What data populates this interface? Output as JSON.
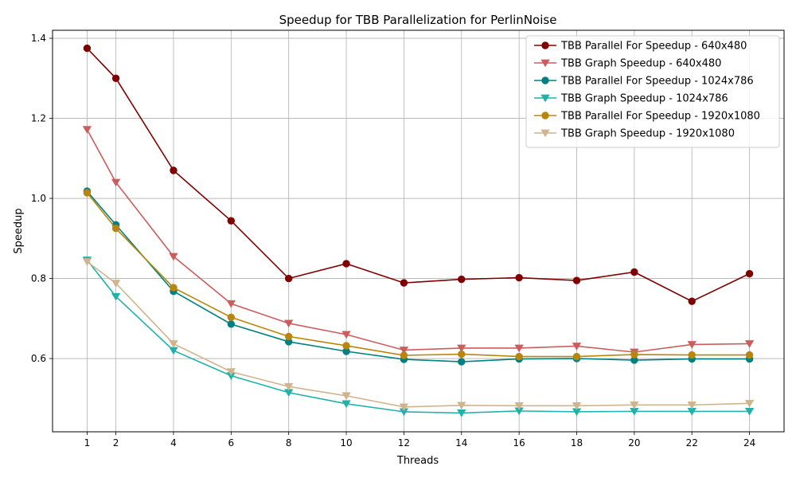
{
  "chart_data": {
    "type": "line",
    "title": "Speedup for TBB Parallelization for PerlinNoise",
    "xlabel": "Threads",
    "ylabel": "Speedup",
    "x": [
      1,
      2,
      4,
      6,
      8,
      10,
      12,
      14,
      16,
      18,
      20,
      22,
      24
    ],
    "xticks": [
      "1",
      "2",
      "4",
      "6",
      "8",
      "10",
      "12",
      "14",
      "16",
      "18",
      "20",
      "22",
      "24"
    ],
    "yticks": [
      "0.6",
      "0.8",
      "1.0",
      "1.2",
      "1.4"
    ],
    "xlim": [
      -0.2,
      25.2
    ],
    "ylim": [
      0.417,
      1.42
    ],
    "grid": true,
    "legend_position": "top-right",
    "series": [
      {
        "name": "TBB Parallel For Speedup - 640x480",
        "color": "#800000",
        "marker": "circle",
        "values": [
          1.375,
          1.3,
          1.07,
          0.944,
          0.8,
          0.837,
          0.789,
          0.798,
          0.802,
          0.795,
          0.816,
          0.743,
          0.812
        ]
      },
      {
        "name": "TBB Graph Speedup - 640x480",
        "color": "#cd5c5c",
        "marker": "triangle-down",
        "values": [
          1.172,
          1.04,
          0.855,
          0.737,
          0.688,
          0.66,
          0.621,
          0.626,
          0.626,
          0.631,
          0.616,
          0.635,
          0.637
        ]
      },
      {
        "name": "TBB Parallel For Speedup - 1024x786",
        "color": "#008080",
        "marker": "circle",
        "values": [
          1.018,
          0.934,
          0.768,
          0.686,
          0.642,
          0.618,
          0.598,
          0.592,
          0.599,
          0.6,
          0.596,
          0.599,
          0.599
        ]
      },
      {
        "name": "TBB Graph Speedup - 1024x786",
        "color": "#20b2aa",
        "marker": "triangle-down",
        "values": [
          0.846,
          0.755,
          0.62,
          0.557,
          0.515,
          0.487,
          0.467,
          0.464,
          0.469,
          0.467,
          0.468,
          0.468,
          0.468
        ]
      },
      {
        "name": "TBB Parallel For Speedup - 1920x1080",
        "color": "#b8860b",
        "marker": "circle",
        "values": [
          1.014,
          0.925,
          0.777,
          0.703,
          0.655,
          0.632,
          0.608,
          0.611,
          0.605,
          0.605,
          0.61,
          0.609,
          0.609
        ]
      },
      {
        "name": "TBB Graph Speedup - 1920x1080",
        "color": "#d2b48c",
        "marker": "triangle-down",
        "values": [
          0.842,
          0.788,
          0.637,
          0.567,
          0.53,
          0.507,
          0.479,
          0.483,
          0.482,
          0.482,
          0.484,
          0.484,
          0.488
        ]
      }
    ]
  }
}
